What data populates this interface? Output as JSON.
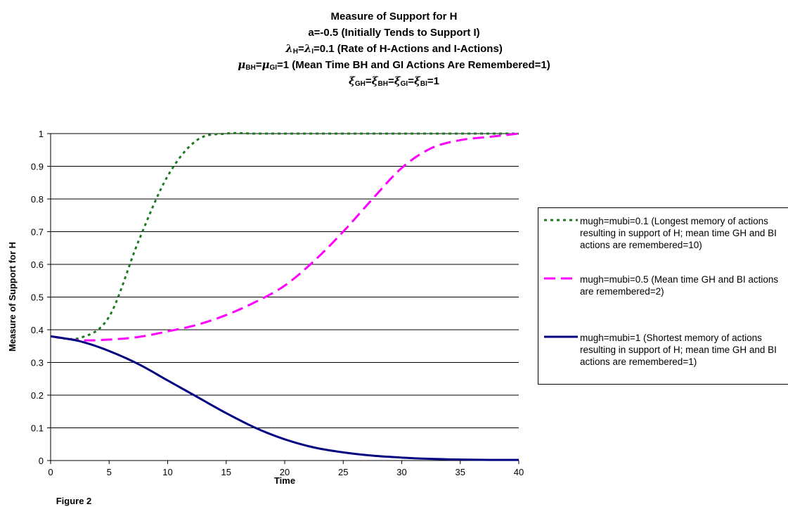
{
  "title_lines": {
    "line1": "Measure of Support for H",
    "line2": "a=-0.5 (Initially Tends to Support I)",
    "line3": {
      "sym1": "λ",
      "sub1": "H",
      "eq1": "=",
      "sym2": "λ",
      "sub2": "I",
      "rest": "=0.1 (Rate of H-Actions and I-Actions)"
    },
    "line4": {
      "sym1": "μ",
      "sub1": "BH",
      "eq1": "=",
      "sym2": "μ",
      "sub2": "GI",
      "rest": "=1 (Mean Time BH and GI Actions Are Remembered=1)"
    },
    "line5": {
      "sym1": "ξ",
      "sub1": "GH",
      "eq1": "=",
      "sym2": "ξ",
      "sub2": "BH",
      "eq2": "=",
      "sym3": "ξ",
      "sub3": "GI",
      "eq3": "=",
      "sym4": "ξ",
      "sub4": "BI",
      "rest": "=1"
    }
  },
  "caption": "Figure 2",
  "chart_data": {
    "type": "line",
    "title": "Measure of Support for H",
    "xlabel": "Time",
    "ylabel": "Measure of Support for H",
    "xlim": [
      0,
      40
    ],
    "ylim": [
      0,
      1
    ],
    "x_ticks": [
      "0",
      "5",
      "10",
      "15",
      "20",
      "25",
      "30",
      "35",
      "40"
    ],
    "y_ticks": [
      "0",
      "0.1",
      "0.2",
      "0.3",
      "0.4",
      "0.5",
      "0.6",
      "0.7",
      "0.8",
      "0.9",
      "1"
    ],
    "grid": "horizontal",
    "legend_position": "right",
    "x": [
      0,
      2.5,
      5,
      7.5,
      10,
      12.5,
      15,
      17.5,
      20,
      22.5,
      25,
      27.5,
      30,
      32.5,
      35,
      37.5,
      40
    ],
    "series": [
      {
        "name": "mugh=mubi=0.1 (Longest memory of actions resulting in support of H; mean time GH and BI actions are remembered=10)",
        "color": "#1f7a1f",
        "dash": "dotted",
        "values": [
          0.38,
          0.375,
          0.44,
          0.67,
          0.87,
          0.98,
          1.0,
          1.0,
          1.0,
          1.0,
          1.0,
          1.0,
          1.0,
          1.0,
          1.0,
          1.0,
          1.0
        ]
      },
      {
        "name": "mugh=mubi=0.5 (Mean time GH and BI actions are remembered=2)",
        "color": "#ff00ff",
        "dash": "dashed",
        "values": [
          0.38,
          0.368,
          0.37,
          0.378,
          0.395,
          0.415,
          0.445,
          0.485,
          0.535,
          0.61,
          0.7,
          0.8,
          0.895,
          0.955,
          0.98,
          0.99,
          1.0
        ]
      },
      {
        "name": "mugh=mubi=1 (Shortest memory of actions resulting in support of H; mean time GH and BI actions are remembered=1)",
        "color": "#000080",
        "dash": "solid",
        "values": [
          0.38,
          0.365,
          0.335,
          0.295,
          0.245,
          0.195,
          0.145,
          0.1,
          0.065,
          0.04,
          0.025,
          0.015,
          0.009,
          0.005,
          0.003,
          0.002,
          0.002
        ]
      }
    ]
  }
}
